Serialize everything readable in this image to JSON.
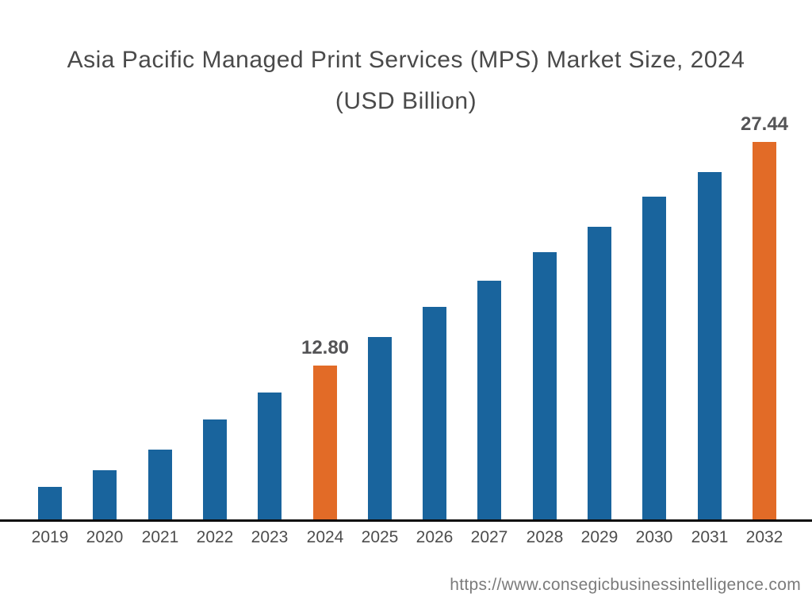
{
  "title": {
    "line1": "Asia Pacific Managed Print Services (MPS) Market Size, 2024",
    "line2": "(USD Billion)"
  },
  "footer": {
    "url": "https://www.consegicbusinessintelligence.com"
  },
  "chart_data": {
    "type": "bar",
    "title": "Asia Pacific Managed Print Services (MPS) Market Size, 2024 (USD Billion)",
    "unit": "USD Billion",
    "categories": [
      "2019",
      "2020",
      "2021",
      "2022",
      "2023",
      "2024",
      "2025",
      "2026",
      "2027",
      "2028",
      "2029",
      "2030",
      "2031",
      "2032"
    ],
    "values": [
      4.85,
      5.94,
      7.3,
      9.27,
      11.03,
      12.8,
      14.66,
      16.64,
      18.35,
      20.22,
      21.88,
      23.86,
      25.47,
      27.44
    ],
    "data_labels": {
      "2024": "12.80",
      "2032": "27.44"
    },
    "highlight_categories": [
      "2024",
      "2032"
    ],
    "colors": {
      "bar_default": "#19649D",
      "bar_highlight": "#E26B27",
      "axis": "#0C0C0C",
      "title_text": "#4A4A4A",
      "label_text": "#545456",
      "tick_text": "#4D4D4D",
      "footer_text": "#7B7B7B"
    },
    "xlabel": "",
    "ylabel": "",
    "ylim": [
      2.73,
      27.44
    ],
    "grid": false,
    "legend": false,
    "y_axis_visible": false
  }
}
